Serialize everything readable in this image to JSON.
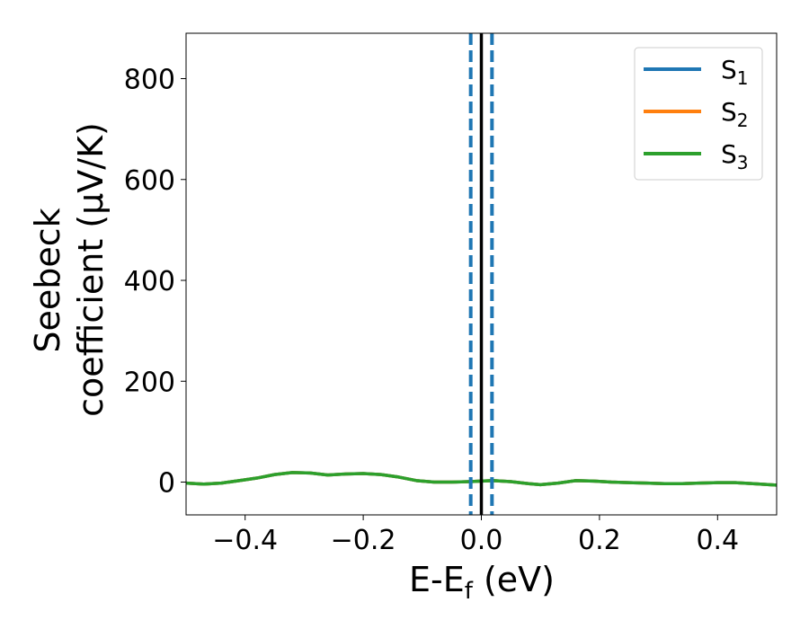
{
  "chart_data": {
    "type": "line",
    "xlabel": {
      "main": "E-E",
      "sub": "f",
      "tail": " (eV)"
    },
    "ylabel": {
      "line1": "Seebeck",
      "line2": "coefficient  (μV/K)"
    },
    "xlim": [
      -0.5,
      0.5
    ],
    "ylim": [
      -65,
      890
    ],
    "xticks": [
      -0.4,
      -0.2,
      0.0,
      0.2,
      0.4
    ],
    "xtick_labels": [
      "−0.4",
      "−0.2",
      "0.0",
      "0.2",
      "0.4"
    ],
    "yticks": [
      0,
      200,
      400,
      600,
      800
    ],
    "ytick_labels": [
      "0",
      "200",
      "400",
      "600",
      "800"
    ],
    "grid": false,
    "legend_position": "top-right",
    "vlines": [
      {
        "x": -0.018,
        "color": "#1f77b4",
        "style": "dashed"
      },
      {
        "x": 0.018,
        "color": "#1f77b4",
        "style": "dashed"
      },
      {
        "x": 0.0,
        "color": "#000000",
        "style": "solid"
      }
    ],
    "x": [
      -0.5,
      -0.47,
      -0.44,
      -0.41,
      -0.38,
      -0.35,
      -0.32,
      -0.29,
      -0.26,
      -0.23,
      -0.2,
      -0.17,
      -0.14,
      -0.11,
      -0.08,
      -0.05,
      -0.02,
      0.0,
      0.02,
      0.05,
      0.08,
      0.1,
      0.13,
      0.16,
      0.19,
      0.22,
      0.25,
      0.28,
      0.31,
      0.34,
      0.37,
      0.4,
      0.43,
      0.46,
      0.5
    ],
    "series": [
      {
        "name": "S",
        "sub": "1",
        "color": "#1f77b4",
        "values": [
          -2,
          -4,
          -2,
          3,
          8,
          15,
          19,
          18,
          14,
          16,
          17,
          15,
          10,
          3,
          0,
          0,
          1,
          2,
          3,
          1,
          -3,
          -5,
          -2,
          3,
          2,
          0,
          -1,
          -2,
          -3,
          -3,
          -2,
          -1,
          -1,
          -3,
          -6
        ]
      },
      {
        "name": "S",
        "sub": "2",
        "color": "#ff7f0e",
        "values": [
          -2,
          -4,
          -2,
          3,
          8,
          15,
          19,
          18,
          14,
          16,
          17,
          15,
          10,
          3,
          0,
          0,
          1,
          2,
          3,
          1,
          -3,
          -5,
          -2,
          3,
          2,
          0,
          -1,
          -2,
          -3,
          -3,
          -2,
          -1,
          -1,
          -3,
          -6
        ]
      },
      {
        "name": "S",
        "sub": "3",
        "color": "#2ca02c",
        "values": [
          -2,
          -4,
          -2,
          3,
          8,
          15,
          19,
          18,
          14,
          16,
          17,
          15,
          10,
          3,
          0,
          0,
          1,
          2,
          3,
          1,
          -3,
          -5,
          -2,
          3,
          2,
          0,
          -1,
          -2,
          -3,
          -3,
          -2,
          -1,
          -1,
          -3,
          -6
        ]
      }
    ]
  }
}
